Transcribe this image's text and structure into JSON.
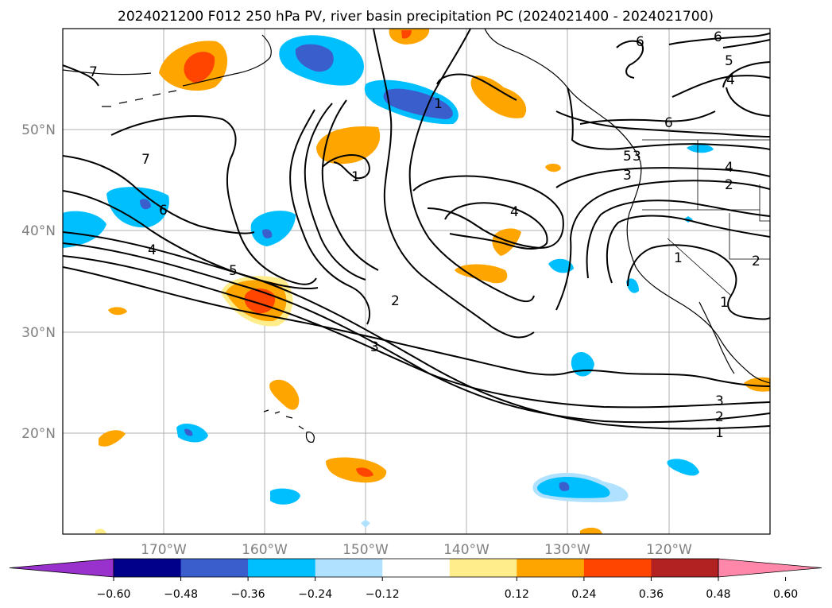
{
  "title": "2024021200 F012 250 hPa PV, river basin precipitation PC (2024021400 - 2024021700)",
  "lon_ticks": [
    "170°W",
    "160°W",
    "150°W",
    "140°W",
    "130°W",
    "120°W"
  ],
  "lat_ticks": [
    "50°N",
    "40°N",
    "30°N",
    "20°N"
  ],
  "colorbar": {
    "colors": [
      "#9932cc",
      "#00008b",
      "#3a5fcd",
      "#00bfff",
      "#b0e2ff",
      "#ffffff",
      "#ffec8b",
      "#ffa500",
      "#ff4500",
      "#b22222",
      "#ff88aa"
    ],
    "tick_labels": [
      "−0.60",
      "−0.48",
      "−0.36",
      "−0.24",
      "−0.12",
      "0.12",
      "0.24",
      "0.36",
      "0.48",
      "0.60"
    ]
  },
  "pv_contour_labels": [
    "7",
    "6",
    "5",
    "4",
    "3",
    "2",
    "1",
    "1",
    "2",
    "3",
    "4",
    "5",
    "6",
    "7",
    "1",
    "4",
    "1",
    "2",
    "3",
    "4",
    "5",
    "6",
    "6",
    "1",
    "2",
    "3"
  ],
  "precip_colors": {
    "pos_light": "#ffec8b",
    "pos_mid": "#ffa500",
    "pos_high": "#ff4500",
    "neg_light": "#b0e2ff",
    "neg_mid": "#00bfff",
    "neg_high": "#3a5fcd"
  }
}
